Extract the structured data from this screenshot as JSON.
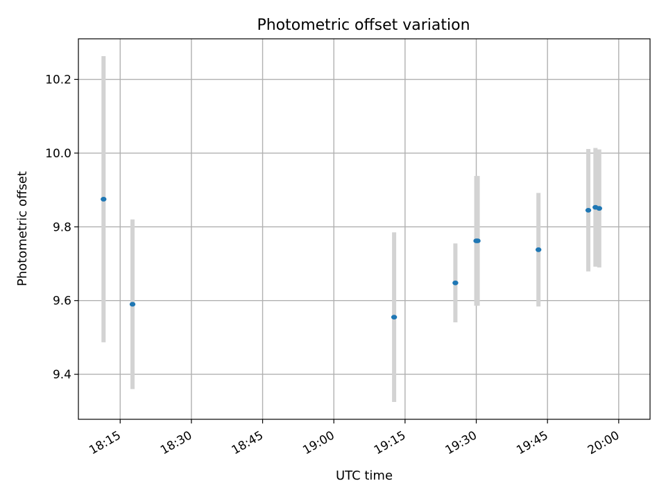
{
  "chart_data": {
    "type": "scatter",
    "title": "Photometric offset variation",
    "xlabel": "UTC time",
    "ylabel": "Photometric offset",
    "x_ticks": [
      "18:15",
      "18:30",
      "18:45",
      "19:00",
      "19:15",
      "19:30",
      "19:45",
      "20:00"
    ],
    "x_tick_minutes": [
      1095,
      1110,
      1125,
      1140,
      1155,
      1170,
      1185,
      1200
    ],
    "xlim_minutes": [
      1086.2,
      1206.6
    ],
    "y_ticks": [
      "9.4",
      "9.6",
      "9.8",
      "10.0",
      "10.2"
    ],
    "y_tick_values": [
      9.4,
      9.6,
      9.8,
      10.0,
      10.2
    ],
    "ylim": [
      9.278,
      10.31
    ],
    "grid": true,
    "points": [
      {
        "t": 1091.5,
        "y": 9.875,
        "err": 0.388
      },
      {
        "t": 1097.6,
        "y": 9.59,
        "err": 0.23
      },
      {
        "t": 1152.7,
        "y": 9.555,
        "err": 0.23
      },
      {
        "t": 1165.6,
        "y": 9.648,
        "err": 0.107
      },
      {
        "t": 1170.0,
        "y": 9.762,
        "err": 0.176
      },
      {
        "t": 1170.3,
        "y": 9.762,
        "err": 0.176
      },
      {
        "t": 1183.1,
        "y": 9.738,
        "err": 0.154
      },
      {
        "t": 1193.6,
        "y": 9.845,
        "err": 0.166
      },
      {
        "t": 1195.1,
        "y": 9.853,
        "err": 0.161
      },
      {
        "t": 1195.9,
        "y": 9.85,
        "err": 0.16
      }
    ],
    "colors": {
      "point": "#1f77b4",
      "errorbar": "#d3d3d3",
      "grid": "#b0b0b0",
      "axes": "#000000"
    }
  }
}
